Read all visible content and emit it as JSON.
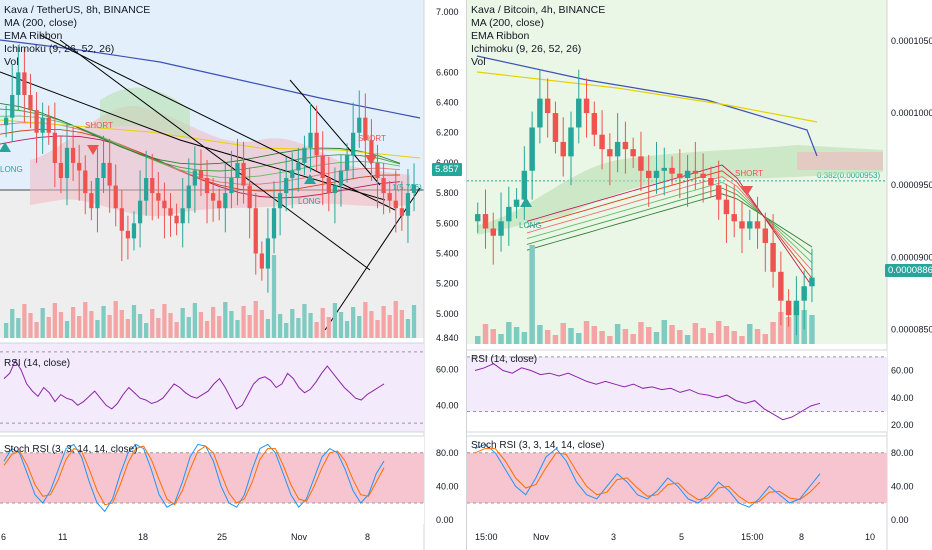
{
  "left": {
    "title": "Kava / TetherUS, 8h, BINANCE",
    "indicators": [
      "MA (200, close)",
      "EMA Ribbon",
      "Ichimoku (9, 26, 52, 26)",
      "Vol"
    ],
    "price_tag": "5.857",
    "price_axis": [
      "7.000",
      "6.600",
      "6.400",
      "6.200",
      "6.000",
      "5.800",
      "5.600",
      "5.400",
      "5.200",
      "5.000",
      "4.840"
    ],
    "time_axis": [
      "6",
      "11",
      "18",
      "25",
      "Nov",
      "8"
    ],
    "rsi_title": "RSI (14, close)",
    "rsi_axis": [
      "60.00",
      "40.00"
    ],
    "stoch_title": "Stoch RSI (3, 3, 14, 14, close)",
    "stoch_axis": [
      "80.00",
      "40.00",
      "0.00"
    ],
    "labels": {
      "short1": "SHORT",
      "short2": "SHORT",
      "long1": "LONG",
      "long2": "LONG",
      "fib": "1(5.706)"
    },
    "colors": {
      "accent": "#26a69a",
      "bg_top": "#e3f0fb",
      "bg_bottom": "#eeeeee"
    }
  },
  "right": {
    "title": "Kava / Bitcoin, 4h, BINANCE",
    "indicators": [
      "MA (200, close)",
      "EMA Ribbon",
      "Ichimoku (9, 26, 52, 26)",
      "Vol"
    ],
    "price_tag": "0.0000886",
    "price_axis": [
      "0.0001050",
      "0.0001000",
      "0.0000950",
      "0.0000900",
      "0.0000850"
    ],
    "time_axis": [
      "15:00",
      "Nov",
      "3",
      "5",
      "15:00",
      "8",
      "10"
    ],
    "rsi_title": "RSI (14, close)",
    "rsi_axis": [
      "60.00",
      "40.00",
      "20.00"
    ],
    "stoch_title": "Stoch RSI (3, 3, 14, 14, close)",
    "stoch_axis": [
      "80.00",
      "40.00",
      "0.00"
    ],
    "labels": {
      "short1": "SHORT",
      "long1": "LONG",
      "fib": "0.382(0.0000953)"
    },
    "colors": {
      "accent": "#26a69a",
      "bg": "#eaf6e6"
    }
  },
  "chart_data": [
    {
      "type": "candlestick",
      "title": "Kava / TetherUS, 8h, BINANCE",
      "ylim": [
        4.84,
        7.0
      ],
      "x_ticks": [
        "6",
        "11",
        "18",
        "25",
        "Nov",
        "8"
      ],
      "last_price": 5.857,
      "close": [
        6.3,
        6.45,
        6.6,
        6.45,
        6.35,
        6.2,
        6.3,
        6.2,
        6.0,
        5.9,
        6.1,
        6.0,
        5.95,
        5.8,
        5.7,
        5.9,
        6.0,
        5.85,
        5.7,
        5.55,
        5.5,
        5.6,
        5.75,
        5.9,
        5.8,
        5.75,
        5.7,
        5.65,
        5.6,
        5.7,
        5.85,
        5.95,
        5.9,
        5.8,
        5.75,
        5.7,
        5.8,
        5.9,
        6.0,
        5.85,
        5.7,
        5.4,
        5.3,
        5.5,
        5.7,
        5.8,
        5.9,
        5.95,
        6.0,
        6.1,
        6.2,
        6.05,
        5.9,
        5.8,
        5.85,
        5.95,
        6.05,
        6.2,
        6.3,
        6.15,
        6.0,
        5.9,
        5.8,
        5.75,
        5.7,
        5.65,
        5.8,
        5.857
      ],
      "rsi": [
        55,
        58,
        65,
        60,
        52,
        48,
        45,
        50,
        47,
        42,
        46,
        44,
        43,
        40,
        42,
        45,
        48,
        44,
        40,
        38,
        41,
        46,
        50,
        47,
        44,
        43,
        41,
        42,
        44,
        48,
        52,
        50,
        47,
        45,
        44,
        46,
        48,
        52,
        55,
        50,
        44,
        38,
        40,
        46,
        52,
        55,
        56,
        54,
        50,
        52,
        58,
        55,
        50,
        47,
        49,
        53,
        58,
        62,
        58,
        54,
        50,
        47,
        44,
        43,
        46,
        48,
        50,
        52
      ],
      "stoch_k": [
        70,
        85,
        80,
        55,
        30,
        20,
        35,
        60,
        85,
        90,
        75,
        45,
        20,
        10,
        25,
        55,
        80,
        90,
        85,
        60,
        30,
        15,
        20,
        45,
        75,
        90,
        88,
        70,
        40,
        20,
        15,
        30,
        60,
        85,
        90,
        80,
        55,
        30,
        15,
        25,
        50,
        75,
        85,
        80,
        60,
        35,
        20,
        30,
        55,
        70
      ],
      "stoch_d": [
        65,
        78,
        82,
        65,
        42,
        28,
        30,
        48,
        72,
        85,
        82,
        60,
        35,
        18,
        20,
        42,
        68,
        85,
        88,
        72,
        48,
        25,
        18,
        35,
        60,
        82,
        88,
        80,
        55,
        32,
        20,
        25,
        45,
        72,
        85,
        85,
        65,
        42,
        25,
        22,
        40,
        62,
        80,
        82,
        70,
        48,
        30,
        28,
        45,
        62
      ]
    },
    {
      "type": "candlestick",
      "title": "Kava / Bitcoin, 4h, BINANCE",
      "ylim": [
        8.4e-05,
        0.000107
      ],
      "x_ticks": [
        "15:00",
        "Nov",
        "3",
        "5",
        "15:00",
        "8",
        "10"
      ],
      "last_price": 8.86e-05,
      "close": [
        9.3e-05,
        9.2e-05,
        9.15e-05,
        9.25e-05,
        9.35e-05,
        9.4e-05,
        9.6e-05,
        9.9e-05,
        0.000101,
        0.0001,
        9.8e-05,
        9.7e-05,
        9.9e-05,
        0.000101,
        0.0001,
        9.85e-05,
        9.75e-05,
        9.7e-05,
        9.8e-05,
        9.75e-05,
        9.7e-05,
        9.6e-05,
        9.55e-05,
        9.6e-05,
        9.62e-05,
        9.58e-05,
        9.55e-05,
        9.6e-05,
        9.58e-05,
        9.55e-05,
        9.5e-05,
        9.4e-05,
        9.3e-05,
        9.25e-05,
        9.2e-05,
        9.25e-05,
        9.2e-05,
        9.1e-05,
        8.9e-05,
        8.7e-05,
        8.6e-05,
        8.7e-05,
        8.8e-05,
        8.86e-05
      ],
      "rsi": [
        60,
        62,
        65,
        60,
        58,
        62,
        60,
        57,
        58,
        56,
        58,
        55,
        52,
        50,
        52,
        50,
        48,
        50,
        47,
        48,
        46,
        47,
        44,
        46,
        43,
        42,
        40,
        42,
        38,
        36,
        38,
        32,
        28,
        24,
        26,
        30,
        34,
        36
      ],
      "stoch_k": [
        85,
        90,
        80,
        60,
        40,
        30,
        50,
        75,
        85,
        70,
        45,
        30,
        25,
        40,
        55,
        45,
        30,
        25,
        35,
        50,
        40,
        25,
        20,
        30,
        45,
        35,
        20,
        15,
        25,
        40,
        30,
        20,
        25,
        40,
        55
      ],
      "stoch_d": [
        80,
        85,
        85,
        70,
        50,
        38,
        42,
        62,
        80,
        78,
        58,
        40,
        30,
        33,
        48,
        50,
        38,
        28,
        30,
        42,
        44,
        32,
        24,
        26,
        38,
        40,
        28,
        20,
        22,
        33,
        34,
        26,
        24,
        33,
        45
      ]
    }
  ]
}
